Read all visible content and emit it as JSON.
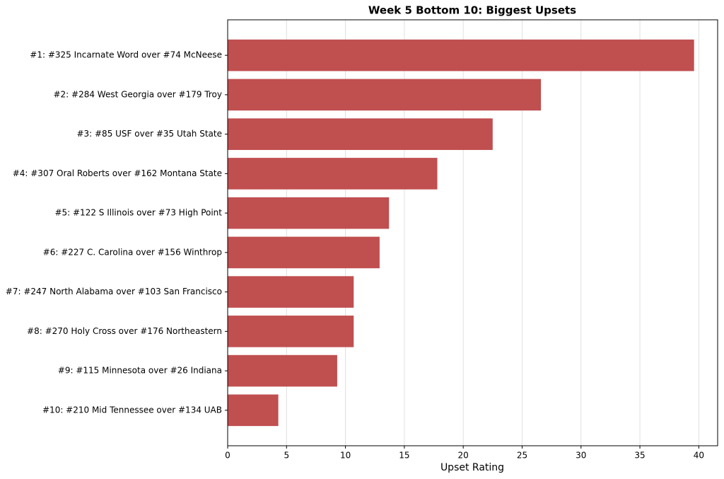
{
  "chart_data": {
    "type": "barh",
    "title": "Week 5 Bottom 10: Biggest Upsets",
    "xlabel": "Upset Rating",
    "categories": [
      "#1: #325 Incarnate Word over #74 McNeese",
      "#2: #284 West Georgia over #179 Troy",
      "#3: #85 USF over #35 Utah State",
      "#4: #307 Oral Roberts over #162 Montana State",
      "#5: #122 S Illinois over #73 High Point",
      "#6: #227 C. Carolina over #156 Winthrop",
      "#7: #247 North Alabama over #103 San Francisco",
      "#8: #270 Holy Cross over #176 Northeastern",
      "#9: #115 Minnesota over #26 Indiana",
      "#10: #210 Mid Tennessee over #134 UAB"
    ],
    "values": [
      39.6,
      26.6,
      22.5,
      17.8,
      13.7,
      12.9,
      10.7,
      10.7,
      9.3,
      4.3
    ],
    "color": "#c04f50",
    "xlim": [
      0,
      41.6
    ],
    "xticks": [
      0,
      5,
      10,
      15,
      20,
      25,
      30,
      35,
      40
    ],
    "grid": true
  }
}
